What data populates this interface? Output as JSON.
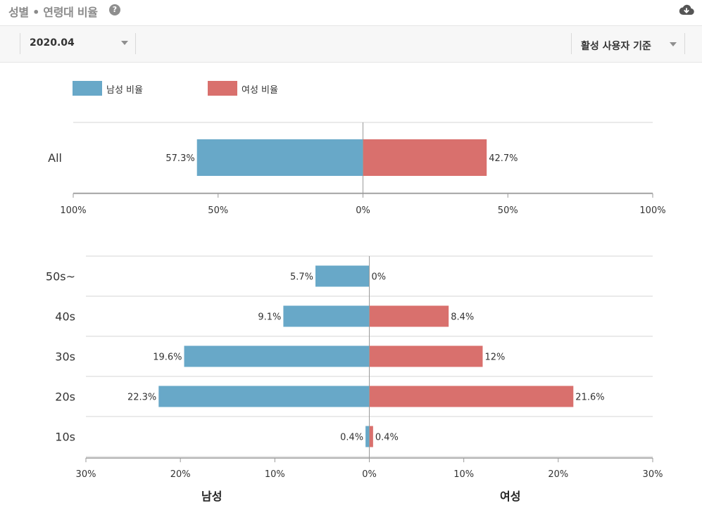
{
  "header": {
    "title": "성별 • 연령대 비율",
    "help_icon": "question-circle-icon",
    "download_icon": "cloud-download-icon"
  },
  "filters": {
    "period": {
      "value": "2020.04",
      "icon": "caret-down-icon"
    },
    "basis": {
      "value": "활성 사용자 기준",
      "icon": "caret-down-icon"
    }
  },
  "colors": {
    "male": "#68a8c8",
    "female": "#d9706d",
    "grid": "#d6d6d6",
    "axis": "#999999"
  },
  "chart_data": [
    {
      "type": "bar",
      "orientation": "horizontal-diverging",
      "categories": [
        "All"
      ],
      "series": [
        {
          "name": "남성 비율",
          "values": [
            57.3
          ],
          "labels": [
            "57.3%"
          ]
        },
        {
          "name": "여성 비율",
          "values": [
            42.7
          ],
          "labels": [
            "42.7%"
          ]
        }
      ],
      "xlim": [
        -100,
        100
      ],
      "ticks": [
        -100,
        -50,
        0,
        50,
        100
      ],
      "tick_labels": [
        "100%",
        "50%",
        "0%",
        "50%",
        "100%"
      ],
      "legend": "top-left",
      "legend_labels": [
        "남성 비율",
        "여성 비율"
      ]
    },
    {
      "type": "bar",
      "orientation": "horizontal-diverging",
      "categories": [
        "50s~",
        "40s",
        "30s",
        "20s",
        "10s"
      ],
      "series": [
        {
          "name": "남성",
          "values": [
            5.7,
            9.1,
            19.6,
            22.3,
            0.4
          ],
          "labels": [
            "5.7%",
            "9.1%",
            "19.6%",
            "22.3%",
            "0.4%"
          ]
        },
        {
          "name": "여성",
          "values": [
            0,
            8.4,
            12,
            21.6,
            0.4
          ],
          "labels": [
            "0%",
            "8.4%",
            "12%",
            "21.6%",
            "0.4%"
          ]
        }
      ],
      "xlim": [
        -30,
        30
      ],
      "ticks": [
        -30,
        -20,
        -10,
        0,
        10,
        20,
        30
      ],
      "tick_labels": [
        "30%",
        "20%",
        "10%",
        "0%",
        "10%",
        "20%",
        "30%"
      ],
      "xlabel_left": "남성",
      "xlabel_right": "여성"
    }
  ]
}
